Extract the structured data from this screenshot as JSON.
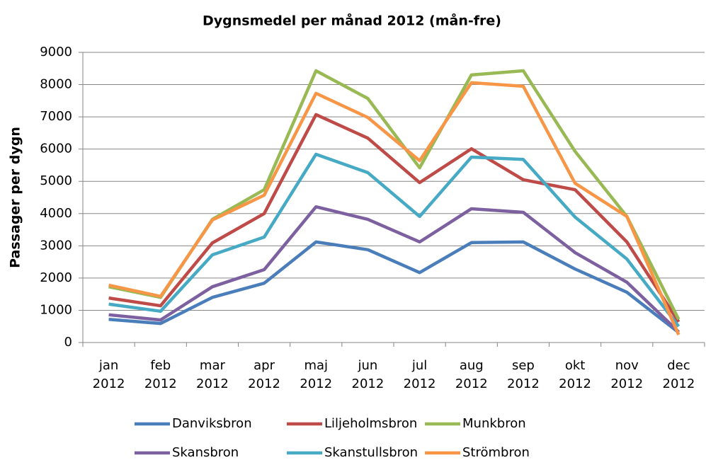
{
  "chart_data": {
    "type": "line",
    "title": "Dygnsmedel per månad 2012 (mån-fre)",
    "y_label": "Passager per dygn",
    "categories": [
      "jan 2012",
      "feb 2012",
      "mar 2012",
      "apr 2012",
      "maj 2012",
      "jun 2012",
      "jul 2012",
      "aug 2012",
      "sep 2012",
      "okt 2012",
      "nov 2012",
      "dec 2012"
    ],
    "series": [
      {
        "name": "Danviksbron",
        "color": "#4a7ebb",
        "values": [
          720,
          590,
          1400,
          1840,
          3120,
          2880,
          2170,
          3100,
          3120,
          2280,
          1560,
          310
        ]
      },
      {
        "name": "Liljeholmsbron",
        "color": "#be4b48",
        "values": [
          1380,
          1140,
          3090,
          4000,
          7070,
          6340,
          4960,
          6010,
          5050,
          4740,
          3120,
          640
        ]
      },
      {
        "name": "Munkbron",
        "color": "#98b954",
        "values": [
          1730,
          1400,
          3820,
          4740,
          8430,
          7570,
          5420,
          8300,
          8430,
          5930,
          3910,
          720
        ]
      },
      {
        "name": "Skansbron",
        "color": "#7d60a0",
        "values": [
          860,
          700,
          1730,
          2260,
          4210,
          3820,
          3120,
          4150,
          4040,
          2790,
          1870,
          330
        ]
      },
      {
        "name": "Skanstullsbron",
        "color": "#46aac5",
        "values": [
          1190,
          970,
          2720,
          3270,
          5840,
          5270,
          3910,
          5750,
          5680,
          3890,
          2590,
          500
        ]
      },
      {
        "name": "Strömbron",
        "color": "#f79646",
        "values": [
          1780,
          1430,
          3800,
          4570,
          7730,
          6980,
          5640,
          8060,
          7950,
          4940,
          3910,
          240
        ]
      }
    ],
    "ylim": [
      0,
      9000
    ],
    "yticks": [
      0,
      1000,
      2000,
      3000,
      4000,
      5000,
      6000,
      7000,
      8000,
      9000
    ],
    "grid": true
  }
}
